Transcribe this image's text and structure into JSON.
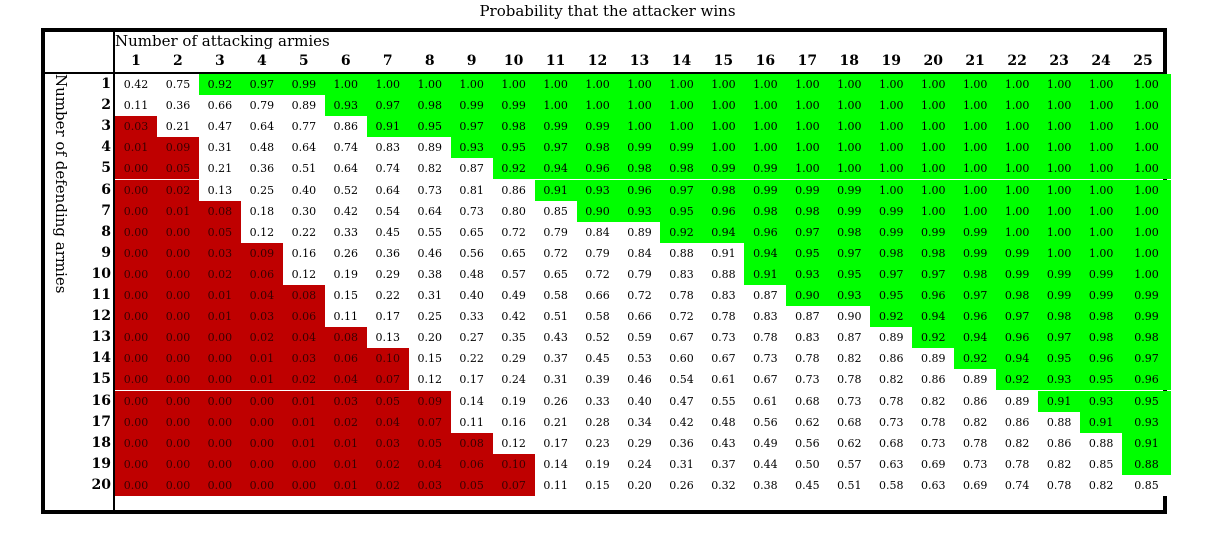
{
  "chart_data": {
    "type": "table",
    "title": "Probability that the attacker wins",
    "col_label": "Number of attacking armies",
    "row_label": "Number of defending armies",
    "columns": [
      1,
      2,
      3,
      4,
      5,
      6,
      7,
      8,
      9,
      10,
      11,
      12,
      13,
      14,
      15,
      16,
      17,
      18,
      19,
      20,
      21,
      22,
      23,
      24,
      25
    ],
    "rows": [
      1,
      2,
      3,
      4,
      5,
      6,
      7,
      8,
      9,
      10,
      11,
      12,
      13,
      14,
      15,
      16,
      17,
      18,
      19,
      20
    ],
    "values": [
      [
        "0.42",
        "0.75",
        "0.92",
        "0.97",
        "0.99",
        "1.00",
        "1.00",
        "1.00",
        "1.00",
        "1.00",
        "1.00",
        "1.00",
        "1.00",
        "1.00",
        "1.00",
        "1.00",
        "1.00",
        "1.00",
        "1.00",
        "1.00",
        "1.00",
        "1.00",
        "1.00",
        "1.00",
        "1.00"
      ],
      [
        "0.11",
        "0.36",
        "0.66",
        "0.79",
        "0.89",
        "0.93",
        "0.97",
        "0.98",
        "0.99",
        "0.99",
        "1.00",
        "1.00",
        "1.00",
        "1.00",
        "1.00",
        "1.00",
        "1.00",
        "1.00",
        "1.00",
        "1.00",
        "1.00",
        "1.00",
        "1.00",
        "1.00",
        "1.00"
      ],
      [
        "0.03",
        "0.21",
        "0.47",
        "0.64",
        "0.77",
        "0.86",
        "0.91",
        "0.95",
        "0.97",
        "0.98",
        "0.99",
        "0.99",
        "1.00",
        "1.00",
        "1.00",
        "1.00",
        "1.00",
        "1.00",
        "1.00",
        "1.00",
        "1.00",
        "1.00",
        "1.00",
        "1.00",
        "1.00"
      ],
      [
        "0.01",
        "0.09",
        "0.31",
        "0.48",
        "0.64",
        "0.74",
        "0.83",
        "0.89",
        "0.93",
        "0.95",
        "0.97",
        "0.98",
        "0.99",
        "0.99",
        "1.00",
        "1.00",
        "1.00",
        "1.00",
        "1.00",
        "1.00",
        "1.00",
        "1.00",
        "1.00",
        "1.00",
        "1.00"
      ],
      [
        "0.00",
        "0.05",
        "0.21",
        "0.36",
        "0.51",
        "0.64",
        "0.74",
        "0.82",
        "0.87",
        "0.92",
        "0.94",
        "0.96",
        "0.98",
        "0.98",
        "0.99",
        "0.99",
        "1.00",
        "1.00",
        "1.00",
        "1.00",
        "1.00",
        "1.00",
        "1.00",
        "1.00",
        "1.00"
      ],
      [
        "0.00",
        "0.02",
        "0.13",
        "0.25",
        "0.40",
        "0.52",
        "0.64",
        "0.73",
        "0.81",
        "0.86",
        "0.91",
        "0.93",
        "0.96",
        "0.97",
        "0.98",
        "0.99",
        "0.99",
        "0.99",
        "1.00",
        "1.00",
        "1.00",
        "1.00",
        "1.00",
        "1.00",
        "1.00"
      ],
      [
        "0.00",
        "0.01",
        "0.08",
        "0.18",
        "0.30",
        "0.42",
        "0.54",
        "0.64",
        "0.73",
        "0.80",
        "0.85",
        "0.90",
        "0.93",
        "0.95",
        "0.96",
        "0.98",
        "0.98",
        "0.99",
        "0.99",
        "1.00",
        "1.00",
        "1.00",
        "1.00",
        "1.00",
        "1.00"
      ],
      [
        "0.00",
        "0.00",
        "0.05",
        "0.12",
        "0.22",
        "0.33",
        "0.45",
        "0.55",
        "0.65",
        "0.72",
        "0.79",
        "0.84",
        "0.89",
        "0.92",
        "0.94",
        "0.96",
        "0.97",
        "0.98",
        "0.99",
        "0.99",
        "0.99",
        "1.00",
        "1.00",
        "1.00",
        "1.00"
      ],
      [
        "0.00",
        "0.00",
        "0.03",
        "0.09",
        "0.16",
        "0.26",
        "0.36",
        "0.46",
        "0.56",
        "0.65",
        "0.72",
        "0.79",
        "0.84",
        "0.88",
        "0.91",
        "0.94",
        "0.95",
        "0.97",
        "0.98",
        "0.98",
        "0.99",
        "0.99",
        "1.00",
        "1.00",
        "1.00"
      ],
      [
        "0.00",
        "0.00",
        "0.02",
        "0.06",
        "0.12",
        "0.19",
        "0.29",
        "0.38",
        "0.48",
        "0.57",
        "0.65",
        "0.72",
        "0.79",
        "0.83",
        "0.88",
        "0.91",
        "0.93",
        "0.95",
        "0.97",
        "0.97",
        "0.98",
        "0.99",
        "0.99",
        "0.99",
        "1.00"
      ],
      [
        "0.00",
        "0.00",
        "0.01",
        "0.04",
        "0.08",
        "0.15",
        "0.22",
        "0.31",
        "0.40",
        "0.49",
        "0.58",
        "0.66",
        "0.72",
        "0.78",
        "0.83",
        "0.87",
        "0.90",
        "0.93",
        "0.95",
        "0.96",
        "0.97",
        "0.98",
        "0.99",
        "0.99",
        "0.99"
      ],
      [
        "0.00",
        "0.00",
        "0.01",
        "0.03",
        "0.06",
        "0.11",
        "0.17",
        "0.25",
        "0.33",
        "0.42",
        "0.51",
        "0.58",
        "0.66",
        "0.72",
        "0.78",
        "0.83",
        "0.87",
        "0.90",
        "0.92",
        "0.94",
        "0.96",
        "0.97",
        "0.98",
        "0.98",
        "0.99"
      ],
      [
        "0.00",
        "0.00",
        "0.00",
        "0.02",
        "0.04",
        "0.08",
        "0.13",
        "0.20",
        "0.27",
        "0.35",
        "0.43",
        "0.52",
        "0.59",
        "0.67",
        "0.73",
        "0.78",
        "0.83",
        "0.87",
        "0.89",
        "0.92",
        "0.94",
        "0.96",
        "0.97",
        "0.98",
        "0.98"
      ],
      [
        "0.00",
        "0.00",
        "0.00",
        "0.01",
        "0.03",
        "0.06",
        "0.10",
        "0.15",
        "0.22",
        "0.29",
        "0.37",
        "0.45",
        "0.53",
        "0.60",
        "0.67",
        "0.73",
        "0.78",
        "0.82",
        "0.86",
        "0.89",
        "0.92",
        "0.94",
        "0.95",
        "0.96",
        "0.97"
      ],
      [
        "0.00",
        "0.00",
        "0.00",
        "0.01",
        "0.02",
        "0.04",
        "0.07",
        "0.12",
        "0.17",
        "0.24",
        "0.31",
        "0.39",
        "0.46",
        "0.54",
        "0.61",
        "0.67",
        "0.73",
        "0.78",
        "0.82",
        "0.86",
        "0.89",
        "0.92",
        "0.93",
        "0.95",
        "0.96"
      ],
      [
        "0.00",
        "0.00",
        "0.00",
        "0.00",
        "0.01",
        "0.03",
        "0.05",
        "0.09",
        "0.14",
        "0.19",
        "0.26",
        "0.33",
        "0.40",
        "0.47",
        "0.55",
        "0.61",
        "0.68",
        "0.73",
        "0.78",
        "0.82",
        "0.86",
        "0.89",
        "0.91",
        "0.93",
        "0.95"
      ],
      [
        "0.00",
        "0.00",
        "0.00",
        "0.00",
        "0.01",
        "0.02",
        "0.04",
        "0.07",
        "0.11",
        "0.16",
        "0.21",
        "0.28",
        "0.34",
        "0.42",
        "0.48",
        "0.56",
        "0.62",
        "0.68",
        "0.73",
        "0.78",
        "0.82",
        "0.86",
        "0.88",
        "0.91",
        "0.93"
      ],
      [
        "0.00",
        "0.00",
        "0.00",
        "0.00",
        "0.01",
        "0.01",
        "0.03",
        "0.05",
        "0.08",
        "0.12",
        "0.17",
        "0.23",
        "0.29",
        "0.36",
        "0.43",
        "0.49",
        "0.56",
        "0.62",
        "0.68",
        "0.73",
        "0.78",
        "0.82",
        "0.86",
        "0.88",
        "0.91"
      ],
      [
        "0.00",
        "0.00",
        "0.00",
        "0.00",
        "0.00",
        "0.01",
        "0.02",
        "0.04",
        "0.06",
        "0.10",
        "0.14",
        "0.19",
        "0.24",
        "0.31",
        "0.37",
        "0.44",
        "0.50",
        "0.57",
        "0.63",
        "0.69",
        "0.73",
        "0.78",
        "0.82",
        "0.85",
        "0.88"
      ],
      [
        "0.00",
        "0.00",
        "0.00",
        "0.00",
        "0.00",
        "0.01",
        "0.02",
        "0.03",
        "0.05",
        "0.07",
        "0.11",
        "0.15",
        "0.20",
        "0.26",
        "0.32",
        "0.38",
        "0.45",
        "0.51",
        "0.58",
        "0.63",
        "0.69",
        "0.74",
        "0.78",
        "0.82",
        "0.85"
      ]
    ],
    "high_cells": [
      [
        3,
        25
      ],
      [
        6,
        25
      ],
      [
        9,
        25
      ],
      [
        10,
        25
      ],
      [
        12,
        25
      ],
      [
        13,
        25
      ],
      [
        15,
        25
      ],
      [
        16,
        25
      ],
      [
        17,
        25
      ],
      [
        18,
        25
      ],
      [
        19,
        25
      ],
      [
        20,
        25
      ],
      [
        21,
        25
      ],
      [
        22,
        25
      ],
      [
        23,
        25
      ],
      [
        23,
        24
      ],
      [
        24,
        24
      ],
      [
        25,
        24
      ]
    ],
    "colors": {
      "high": "#00ff00",
      "low": "#bf0000",
      "mid": "#ffffff"
    }
  }
}
